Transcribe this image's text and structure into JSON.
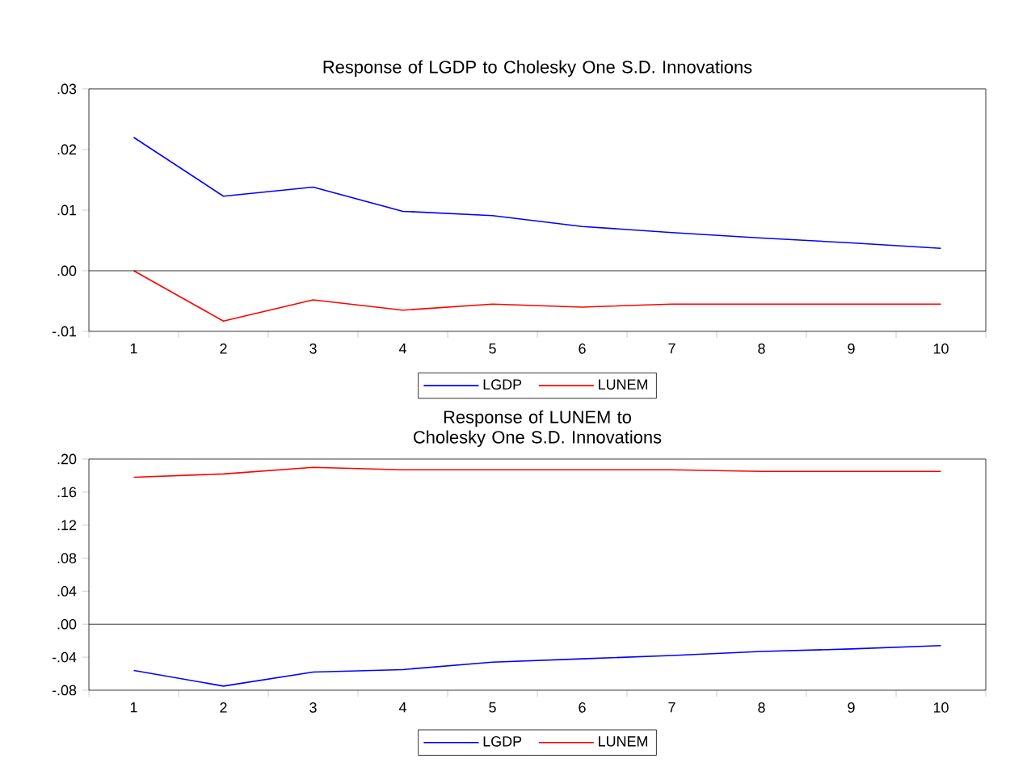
{
  "chart_data": [
    {
      "type": "line",
      "title": "Response of LGDP to Cholesky One S.D. Innovations",
      "categories": [
        "1",
        "2",
        "3",
        "4",
        "5",
        "6",
        "7",
        "8",
        "9",
        "10"
      ],
      "series": [
        {
          "name": "LGDP",
          "color": "#0000ff",
          "values": [
            0.022,
            0.0123,
            0.0138,
            0.0098,
            0.0091,
            0.0073,
            0.0063,
            0.0054,
            0.0046,
            0.0037
          ]
        },
        {
          "name": "LUNEM",
          "color": "#ff0000",
          "values": [
            0.0,
            -0.0083,
            -0.0048,
            -0.0065,
            -0.0055,
            -0.006,
            -0.0055,
            -0.0055,
            -0.0055,
            -0.0055
          ]
        }
      ],
      "ylim": [
        -0.01,
        0.03
      ],
      "yticks": [
        {
          "value": -0.01,
          "label": "-.01"
        },
        {
          "value": 0.0,
          "label": ".00"
        },
        {
          "value": 0.01,
          "label": ".01"
        },
        {
          "value": 0.02,
          "label": ".02"
        },
        {
          "value": 0.03,
          "label": ".03"
        }
      ],
      "ref_lines": [
        {
          "axis": "y",
          "value": 0,
          "color": "#000000"
        }
      ],
      "legend": "bottom"
    },
    {
      "type": "line",
      "title": "Response of LUNEM to Cholesky One S.D. Innovations",
      "categories": [
        "1",
        "2",
        "3",
        "4",
        "5",
        "6",
        "7",
        "8",
        "9",
        "10"
      ],
      "series": [
        {
          "name": "LGDP",
          "color": "#0000ff",
          "values": [
            -0.056,
            -0.075,
            -0.058,
            -0.055,
            -0.046,
            -0.042,
            -0.038,
            -0.033,
            -0.03,
            -0.026
          ]
        },
        {
          "name": "LUNEM",
          "color": "#ff0000",
          "values": [
            0.178,
            0.182,
            0.19,
            0.187,
            0.187,
            0.187,
            0.187,
            0.185,
            0.185,
            0.185
          ]
        }
      ],
      "ylim": [
        -0.08,
        0.2
      ],
      "yticks": [
        {
          "value": -0.08,
          "label": "-.08"
        },
        {
          "value": -0.04,
          "label": "-.04"
        },
        {
          "value": 0.0,
          "label": ".00"
        },
        {
          "value": 0.04,
          "label": ".04"
        },
        {
          "value": 0.08,
          "label": ".08"
        },
        {
          "value": 0.12,
          "label": ".12"
        },
        {
          "value": 0.16,
          "label": ".16"
        },
        {
          "value": 0.2,
          "label": ".20"
        }
      ],
      "ref_lines": [
        {
          "axis": "y",
          "value": 0,
          "color": "#000000"
        }
      ],
      "legend": "bottom"
    }
  ]
}
